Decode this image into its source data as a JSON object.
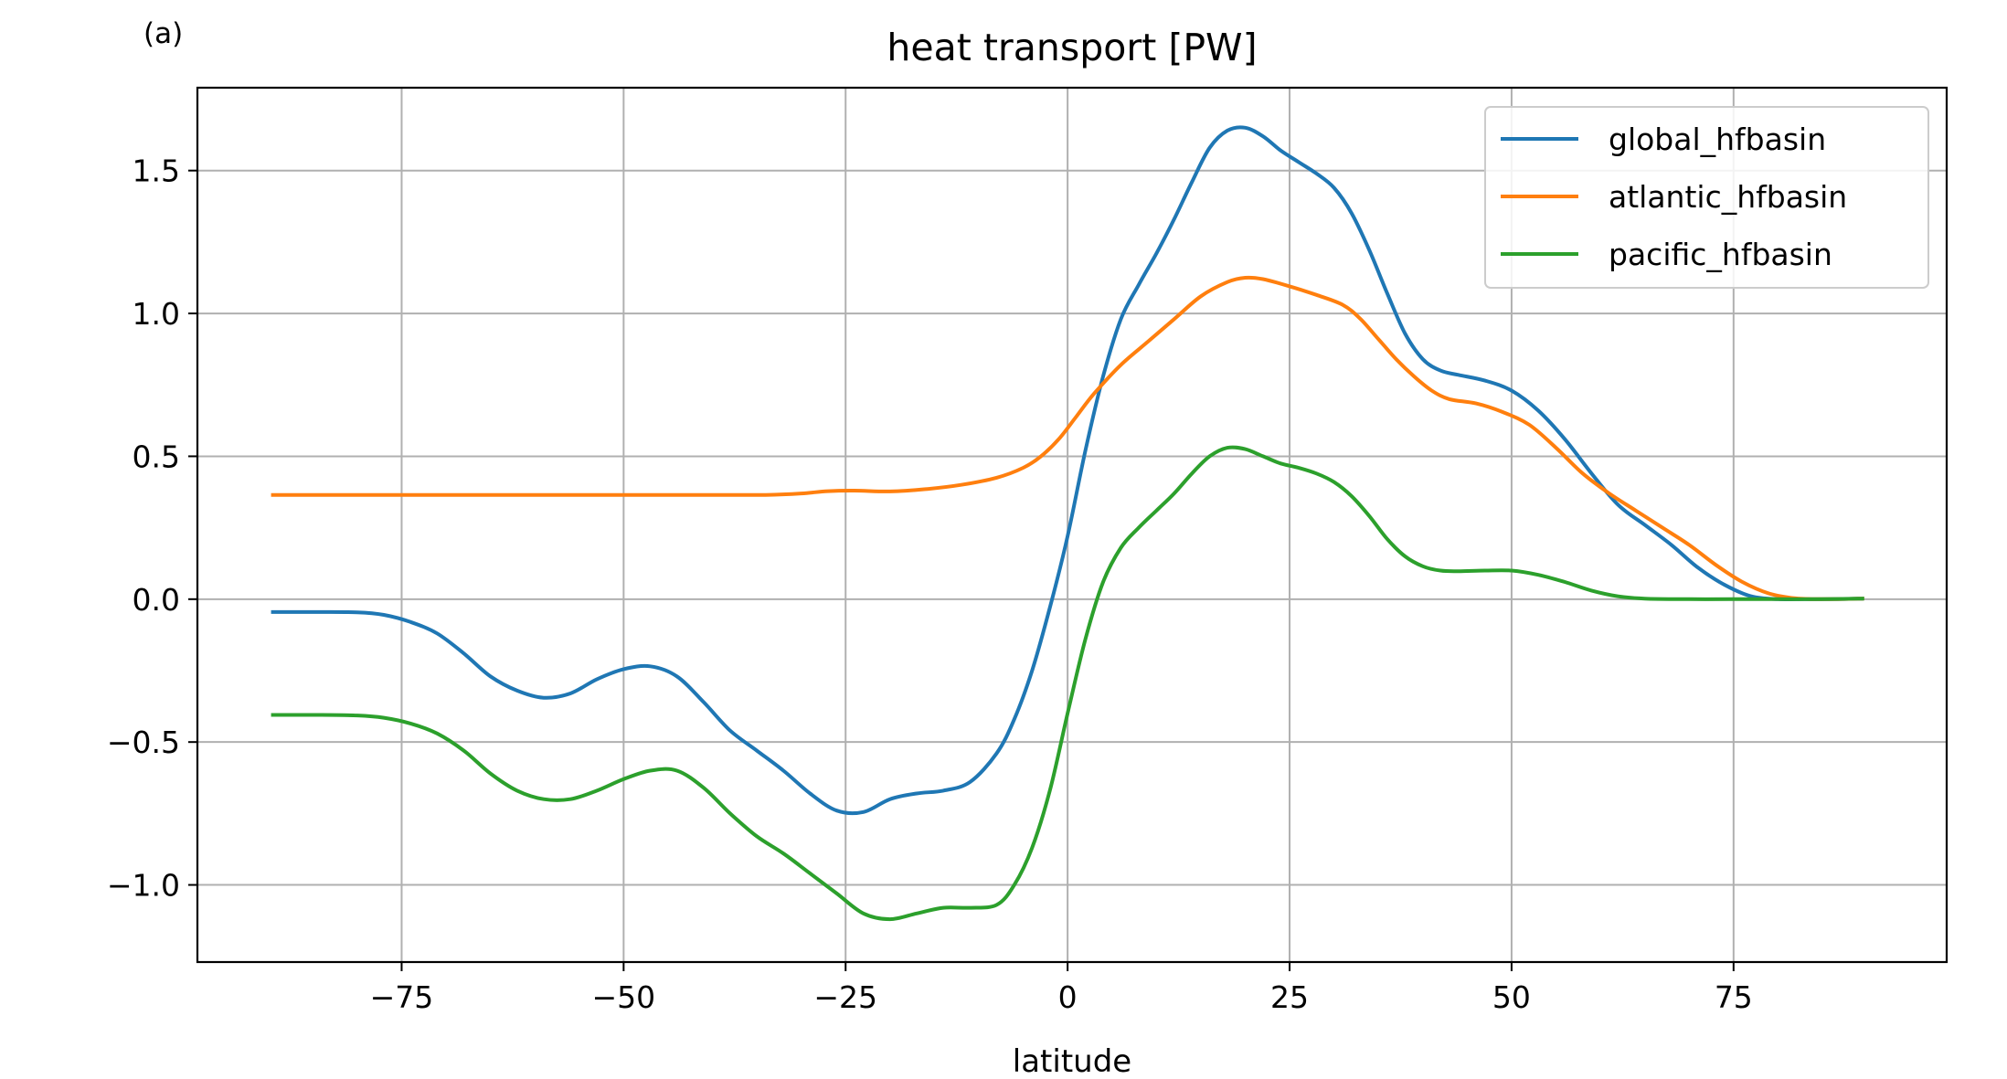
{
  "panel_label": "(a)",
  "chart_data": {
    "type": "line",
    "title": "heat transport [PW]",
    "xlabel": "latitude",
    "ylabel": "",
    "xlim": [
      -98,
      99
    ],
    "ylim": [
      -1.27,
      1.79
    ],
    "xticks": [
      -75,
      -50,
      -25,
      0,
      25,
      50,
      75
    ],
    "xtick_labels": [
      "−75",
      "−50",
      "−25",
      "0",
      "25",
      "50",
      "75"
    ],
    "yticks": [
      -1.0,
      -0.5,
      0.0,
      0.5,
      1.0,
      1.5
    ],
    "ytick_labels": [
      "−1.0",
      "−0.5",
      "0.0",
      "0.5",
      "1.0",
      "1.5"
    ],
    "grid": true,
    "legend_position": "upper right",
    "series": [
      {
        "name": "global_hfbasin",
        "color": "#1f77b4",
        "x": [
          -89.5,
          -85,
          -80,
          -77,
          -74,
          -71,
          -68,
          -65,
          -62,
          -59,
          -56,
          -53,
          -50,
          -47,
          -44,
          -41,
          -38,
          -35,
          -32,
          -29,
          -26,
          -23,
          -20,
          -17,
          -14,
          -11,
          -8,
          -6,
          -4,
          -2,
          0,
          2,
          4,
          6,
          8,
          10,
          12,
          14,
          16,
          18,
          20,
          22,
          24,
          26,
          28,
          30,
          32,
          34,
          36,
          38,
          40,
          42,
          44,
          47,
          50,
          53,
          56,
          59,
          62,
          65,
          68,
          71,
          74,
          77,
          80,
          83,
          86,
          89.5
        ],
        "y": [
          -0.045,
          -0.045,
          -0.046,
          -0.055,
          -0.08,
          -0.12,
          -0.19,
          -0.27,
          -0.32,
          -0.345,
          -0.33,
          -0.28,
          -0.245,
          -0.235,
          -0.27,
          -0.36,
          -0.46,
          -0.53,
          -0.6,
          -0.68,
          -0.74,
          -0.745,
          -0.7,
          -0.68,
          -0.67,
          -0.64,
          -0.54,
          -0.42,
          -0.25,
          -0.03,
          0.22,
          0.52,
          0.78,
          0.98,
          1.1,
          1.21,
          1.33,
          1.46,
          1.58,
          1.64,
          1.65,
          1.62,
          1.57,
          1.53,
          1.49,
          1.44,
          1.35,
          1.22,
          1.07,
          0.93,
          0.84,
          0.8,
          0.785,
          0.765,
          0.73,
          0.66,
          0.56,
          0.44,
          0.33,
          0.26,
          0.19,
          0.11,
          0.05,
          0.01,
          0.0,
          0.0,
          0.0,
          0.002
        ]
      },
      {
        "name": "atlantic_hfbasin",
        "color": "#ff7f0e",
        "x": [
          -89.5,
          -80,
          -70,
          -60,
          -50,
          -40,
          -34,
          -30,
          -27,
          -24,
          -20,
          -16,
          -12,
          -8,
          -5,
          -3,
          -1,
          1,
          3,
          6,
          9,
          12,
          15,
          18,
          20,
          22,
          25,
          28,
          31,
          33,
          35,
          37,
          39,
          41,
          43,
          46,
          49,
          52,
          55,
          58,
          61,
          64,
          67,
          70,
          73,
          76,
          79,
          82,
          85,
          89.5
        ],
        "y": [
          0.365,
          0.365,
          0.365,
          0.365,
          0.365,
          0.365,
          0.365,
          0.37,
          0.378,
          0.38,
          0.377,
          0.385,
          0.4,
          0.425,
          0.46,
          0.5,
          0.56,
          0.64,
          0.72,
          0.82,
          0.9,
          0.98,
          1.06,
          1.11,
          1.125,
          1.12,
          1.095,
          1.065,
          1.03,
          0.98,
          0.91,
          0.84,
          0.78,
          0.73,
          0.7,
          0.685,
          0.655,
          0.61,
          0.53,
          0.44,
          0.37,
          0.31,
          0.25,
          0.19,
          0.12,
          0.06,
          0.02,
          0.003,
          0.0,
          0.002
        ]
      },
      {
        "name": "pacific_hfbasin",
        "color": "#2ca02c",
        "x": [
          -89.5,
          -85,
          -80,
          -77,
          -74,
          -71,
          -68,
          -65,
          -62,
          -59,
          -56,
          -53,
          -50,
          -47,
          -44,
          -41,
          -38,
          -35,
          -32,
          -29,
          -26,
          -23,
          -20,
          -17,
          -14,
          -11,
          -8,
          -6,
          -4,
          -2,
          0,
          2,
          4,
          6,
          8,
          10,
          12,
          14,
          16,
          18,
          20,
          22,
          24,
          26,
          28,
          30,
          32,
          34,
          36,
          38,
          40,
          42,
          44,
          47,
          50,
          53,
          56,
          59,
          62,
          65,
          70,
          75,
          80,
          85,
          89.5
        ],
        "y": [
          -0.405,
          -0.405,
          -0.407,
          -0.415,
          -0.435,
          -0.47,
          -0.53,
          -0.61,
          -0.67,
          -0.7,
          -0.7,
          -0.67,
          -0.63,
          -0.6,
          -0.6,
          -0.66,
          -0.75,
          -0.83,
          -0.89,
          -0.96,
          -1.03,
          -1.1,
          -1.12,
          -1.1,
          -1.08,
          -1.08,
          -1.07,
          -1.0,
          -0.87,
          -0.67,
          -0.4,
          -0.14,
          0.06,
          0.18,
          0.25,
          0.31,
          0.37,
          0.44,
          0.5,
          0.53,
          0.525,
          0.5,
          0.475,
          0.46,
          0.44,
          0.41,
          0.36,
          0.29,
          0.21,
          0.15,
          0.115,
          0.1,
          0.098,
          0.1,
          0.1,
          0.085,
          0.06,
          0.03,
          0.01,
          0.002,
          0.0,
          0.0,
          0.0,
          0.0,
          0.002
        ]
      }
    ]
  }
}
